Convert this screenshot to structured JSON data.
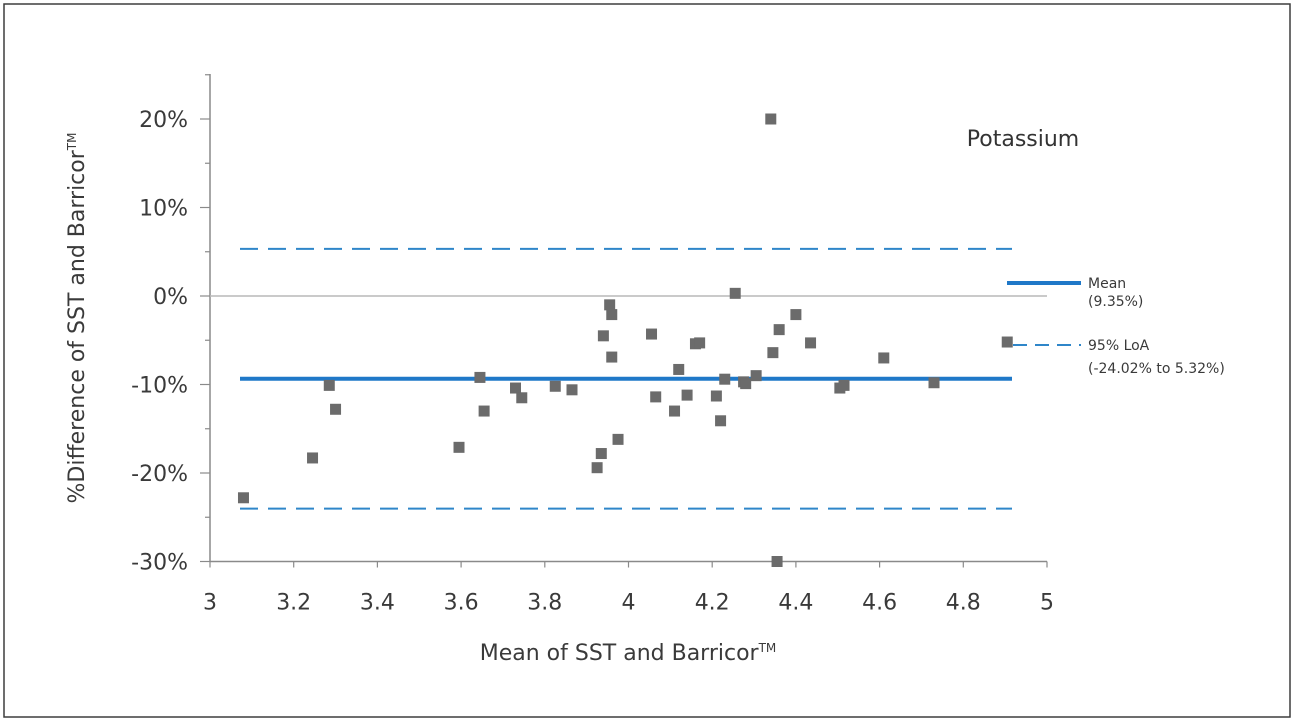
{
  "chart_data": {
    "type": "scatter",
    "title": "Potassium",
    "xlabel": "Mean of SST and Barricor",
    "xlabel_sup": "TM",
    "ylabel": "%Difference of SST and Barricor",
    "ylabel_sup": "TM",
    "xlim": [
      3,
      5
    ],
    "ylim": [
      -30,
      25
    ],
    "x_ticks": [
      "3",
      "3.2",
      "3.4",
      "3.6",
      "3.8",
      "4",
      "4.2",
      "4.4",
      "4.6",
      "4.8",
      "5"
    ],
    "y_ticks": [
      "20%",
      "10%",
      "0%",
      "-10%",
      "-20%",
      "-30%"
    ],
    "mean_line": -9.35,
    "loa_upper": 5.32,
    "loa_lower": -24.02,
    "legend": {
      "mean_label": "Mean",
      "mean_value": "(9.35%)",
      "loa_label": "95% LoA",
      "loa_value": "(-24.02% to 5.32%)"
    },
    "points": [
      {
        "x": 3.08,
        "y": -22.8
      },
      {
        "x": 3.245,
        "y": -18.3
      },
      {
        "x": 3.285,
        "y": -10.1
      },
      {
        "x": 3.3,
        "y": -12.8
      },
      {
        "x": 3.595,
        "y": -17.1
      },
      {
        "x": 3.645,
        "y": -9.2
      },
      {
        "x": 3.655,
        "y": -13.0
      },
      {
        "x": 3.73,
        "y": -10.4
      },
      {
        "x": 3.745,
        "y": -11.5
      },
      {
        "x": 3.825,
        "y": -10.2
      },
      {
        "x": 3.865,
        "y": -10.6
      },
      {
        "x": 3.925,
        "y": -19.4
      },
      {
        "x": 3.935,
        "y": -17.8
      },
      {
        "x": 3.94,
        "y": -4.5
      },
      {
        "x": 3.955,
        "y": -1.0
      },
      {
        "x": 3.96,
        "y": -2.1
      },
      {
        "x": 3.96,
        "y": -6.9
      },
      {
        "x": 3.975,
        "y": -16.2
      },
      {
        "x": 4.055,
        "y": -4.3
      },
      {
        "x": 4.065,
        "y": -11.4
      },
      {
        "x": 4.11,
        "y": -13.0
      },
      {
        "x": 4.12,
        "y": -8.3
      },
      {
        "x": 4.14,
        "y": -11.2
      },
      {
        "x": 4.16,
        "y": -5.4
      },
      {
        "x": 4.17,
        "y": -5.3
      },
      {
        "x": 4.21,
        "y": -11.3
      },
      {
        "x": 4.22,
        "y": -14.1
      },
      {
        "x": 4.23,
        "y": -9.4
      },
      {
        "x": 4.255,
        "y": 0.3
      },
      {
        "x": 4.275,
        "y": -9.7
      },
      {
        "x": 4.28,
        "y": -9.9
      },
      {
        "x": 4.305,
        "y": -9.0
      },
      {
        "x": 4.34,
        "y": 20.0
      },
      {
        "x": 4.345,
        "y": -6.4
      },
      {
        "x": 4.355,
        "y": -30.0
      },
      {
        "x": 4.36,
        "y": -3.8
      },
      {
        "x": 4.4,
        "y": -2.1
      },
      {
        "x": 4.435,
        "y": -5.3
      },
      {
        "x": 4.505,
        "y": -10.4
      },
      {
        "x": 4.515,
        "y": -10.1
      },
      {
        "x": 4.61,
        "y": -7.0
      },
      {
        "x": 4.73,
        "y": -9.8
      },
      {
        "x": 4.905,
        "y": -5.2
      }
    ],
    "colors": {
      "mean": "#1f78c8",
      "loa": "#2f86c9",
      "points": "#6b6b6b",
      "zero": "#b9b9b9",
      "axis": "#8a8a8a"
    },
    "grid": false,
    "legend_placement": "right"
  }
}
